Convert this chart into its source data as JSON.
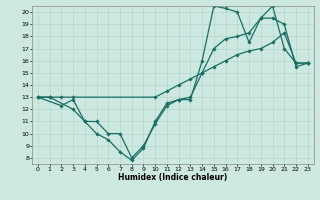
{
  "xlabel": "Humidex (Indice chaleur)",
  "xlim": [
    -0.5,
    23.5
  ],
  "ylim": [
    7.5,
    20.5
  ],
  "xticks": [
    0,
    1,
    2,
    3,
    4,
    5,
    6,
    7,
    8,
    9,
    10,
    11,
    12,
    13,
    14,
    15,
    16,
    17,
    18,
    19,
    20,
    21,
    22,
    23
  ],
  "yticks": [
    8,
    9,
    10,
    11,
    12,
    13,
    14,
    15,
    16,
    17,
    18,
    19,
    20
  ],
  "bg_color": "#cce8e0",
  "line_color": "#1a6e64",
  "lines": [
    {
      "x": [
        0,
        1,
        3,
        4,
        5,
        6,
        7,
        8,
        9,
        10,
        11,
        12,
        13,
        14,
        15,
        16,
        17,
        18,
        19,
        20,
        21,
        22,
        23
      ],
      "y": [
        13,
        13,
        12,
        11,
        10,
        9.5,
        8.5,
        7.8,
        8.8,
        11,
        12.5,
        12.8,
        13,
        15,
        17,
        17.8,
        18,
        18.3,
        19.5,
        20.5,
        17,
        15.8,
        15.8
      ]
    },
    {
      "x": [
        0,
        2,
        3,
        4,
        5,
        6,
        7,
        8,
        9,
        10,
        11,
        12,
        13,
        14,
        15,
        16,
        17,
        18,
        19,
        20,
        21,
        22,
        23
      ],
      "y": [
        13,
        12.3,
        12.8,
        11,
        11,
        10,
        10,
        8,
        9,
        10.8,
        12.3,
        12.8,
        12.8,
        16,
        20.5,
        20.3,
        20,
        17.5,
        19.5,
        19.5,
        19,
        15.5,
        15.8
      ]
    },
    {
      "x": [
        0,
        1,
        2,
        3,
        10,
        11,
        12,
        13,
        14,
        15,
        16,
        17,
        18,
        19,
        20,
        21,
        22,
        23
      ],
      "y": [
        13,
        13,
        13,
        13,
        13,
        13.5,
        14,
        14.5,
        15,
        15.5,
        16,
        16.5,
        16.8,
        17,
        17.5,
        18.3,
        15.8,
        15.8
      ]
    }
  ],
  "marker": "D",
  "markersize": 1.8,
  "linewidth": 0.9,
  "grid_color": "#aad4cc",
  "tick_fontsize": 4.5,
  "label_fontsize": 5.5,
  "spine_color": "#888888"
}
